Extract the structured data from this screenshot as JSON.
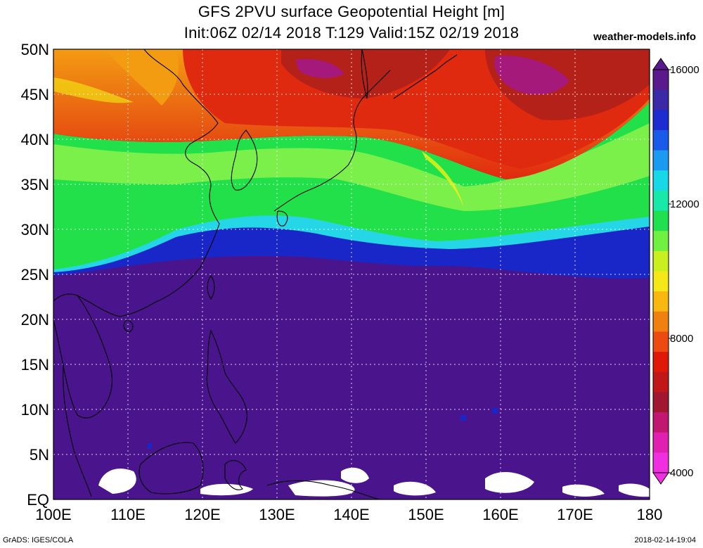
{
  "title": {
    "line1": "GFS 2PVU surface Geopotential Height [m]",
    "line2": "Init:06Z 02/14 2018 T:129 Valid:15Z 02/19 2018"
  },
  "brand": "weather-models.info",
  "footer": {
    "left": "GrADS: IGES/COLA",
    "right": "2018-02-14-19:04"
  },
  "map": {
    "lon_range": [
      100,
      180
    ],
    "lat_range": [
      0,
      50
    ],
    "lat_ticks": [
      {
        "value": 50,
        "label": "50N"
      },
      {
        "value": 45,
        "label": "45N"
      },
      {
        "value": 40,
        "label": "40N"
      },
      {
        "value": 35,
        "label": "35N"
      },
      {
        "value": 30,
        "label": "30N"
      },
      {
        "value": 25,
        "label": "25N"
      },
      {
        "value": 20,
        "label": "20N"
      },
      {
        "value": 15,
        "label": "15N"
      },
      {
        "value": 10,
        "label": "10N"
      },
      {
        "value": 5,
        "label": "5N"
      },
      {
        "value": 0,
        "label": "EQ"
      }
    ],
    "lon_ticks": [
      {
        "value": 100,
        "label": "100E"
      },
      {
        "value": 110,
        "label": "110E"
      },
      {
        "value": 120,
        "label": "120E"
      },
      {
        "value": 130,
        "label": "130E"
      },
      {
        "value": 140,
        "label": "140E"
      },
      {
        "value": 150,
        "label": "150E"
      },
      {
        "value": 160,
        "label": "160E"
      },
      {
        "value": 170,
        "label": "170E"
      },
      {
        "value": 180,
        "label": "180"
      }
    ],
    "colors": {
      "deep": "#4a148c",
      "blue": "#1a27c8",
      "cyan": "#25d7e6",
      "green": "#22e04a",
      "lightgreen": "#8cf24a",
      "yellow": "#f4f014",
      "orange": "#f39c12",
      "red": "#e02a10",
      "darkred": "#b32118",
      "magenta": "#a5197a",
      "coast": "#000000"
    }
  },
  "colorbar": {
    "labels": [
      {
        "value": 16000,
        "label": "16000"
      },
      {
        "value": 12000,
        "label": "12000"
      },
      {
        "value": 8000,
        "label": "8000"
      },
      {
        "value": 4000,
        "label": "4000"
      }
    ],
    "stops": [
      "#5a1a8c",
      "#3a2aa8",
      "#1c2cd0",
      "#1a5ae8",
      "#1a9af0",
      "#18d8e8",
      "#18e8a8",
      "#20e050",
      "#70f040",
      "#c8f020",
      "#f4e818",
      "#f8b810",
      "#f08010",
      "#ec4a10",
      "#e01808",
      "#c01818",
      "#a01830",
      "#c01870",
      "#e020b0",
      "#f030e0"
    ]
  }
}
